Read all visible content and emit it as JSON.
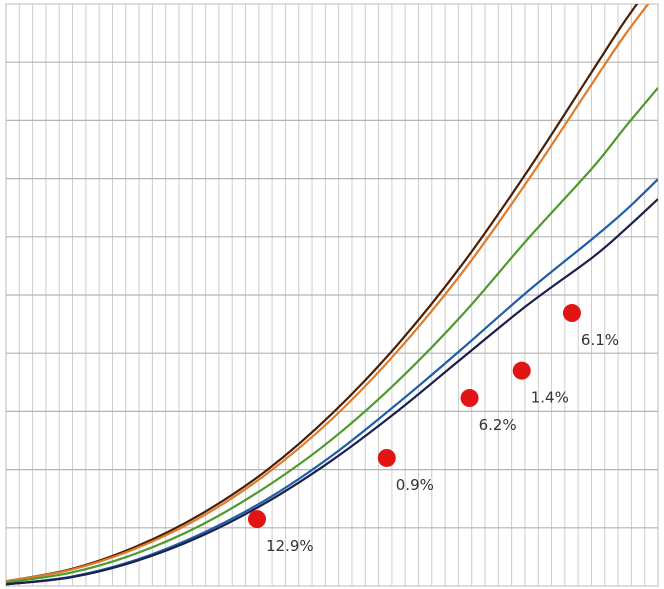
{
  "chart_data": {
    "type": "line",
    "title": "",
    "xlabel": "",
    "ylabel": "",
    "xlim": [
      0,
      100
    ],
    "ylim": [
      0,
      100
    ],
    "grid": {
      "vertical_lines": 49,
      "horizontal_lines": 10
    },
    "legend": "none",
    "x": [
      0,
      10,
      20,
      30,
      40,
      50,
      60,
      70,
      80,
      90,
      95,
      100
    ],
    "series": [
      {
        "color": "#4a1f05",
        "values": [
          0.8,
          2.9,
          6.8,
          12.4,
          19.9,
          29.6,
          41.4,
          55.3,
          71.3,
          88.6,
          97.2,
          105.0
        ]
      },
      {
        "color": "#e07b2a",
        "values": [
          0.8,
          2.8,
          6.5,
          11.9,
          19.3,
          28.7,
          40.3,
          53.9,
          69.6,
          86.5,
          94.8,
          102.2
        ]
      },
      {
        "color": "#4f9a2c",
        "values": [
          0.6,
          2.3,
          5.6,
          10.5,
          17.1,
          25.2,
          35.1,
          46.6,
          59.6,
          71.9,
          78.9,
          85.6
        ]
      },
      {
        "color": "#1f5ea8",
        "values": [
          0.3,
          1.6,
          4.5,
          9.0,
          14.9,
          22.4,
          31.3,
          40.8,
          50.6,
          59.7,
          64.5,
          69.9
        ]
      },
      {
        "color": "#1c1f4a",
        "values": [
          0.3,
          1.5,
          4.3,
          8.6,
          14.4,
          21.6,
          30.0,
          39.2,
          48.3,
          56.5,
          61.3,
          66.5
        ]
      }
    ],
    "points": [
      {
        "x": 38.5,
        "y": 11.5,
        "label": "12.9%"
      },
      {
        "x": 58.4,
        "y": 22.0,
        "label": "0.9%"
      },
      {
        "x": 71.1,
        "y": 32.3,
        "label": "6.2%"
      },
      {
        "x": 79.1,
        "y": 37.0,
        "label": "1.4%"
      },
      {
        "x": 86.8,
        "y": 46.9,
        "label": "6.1%"
      }
    ],
    "point_color": "#e31414"
  }
}
